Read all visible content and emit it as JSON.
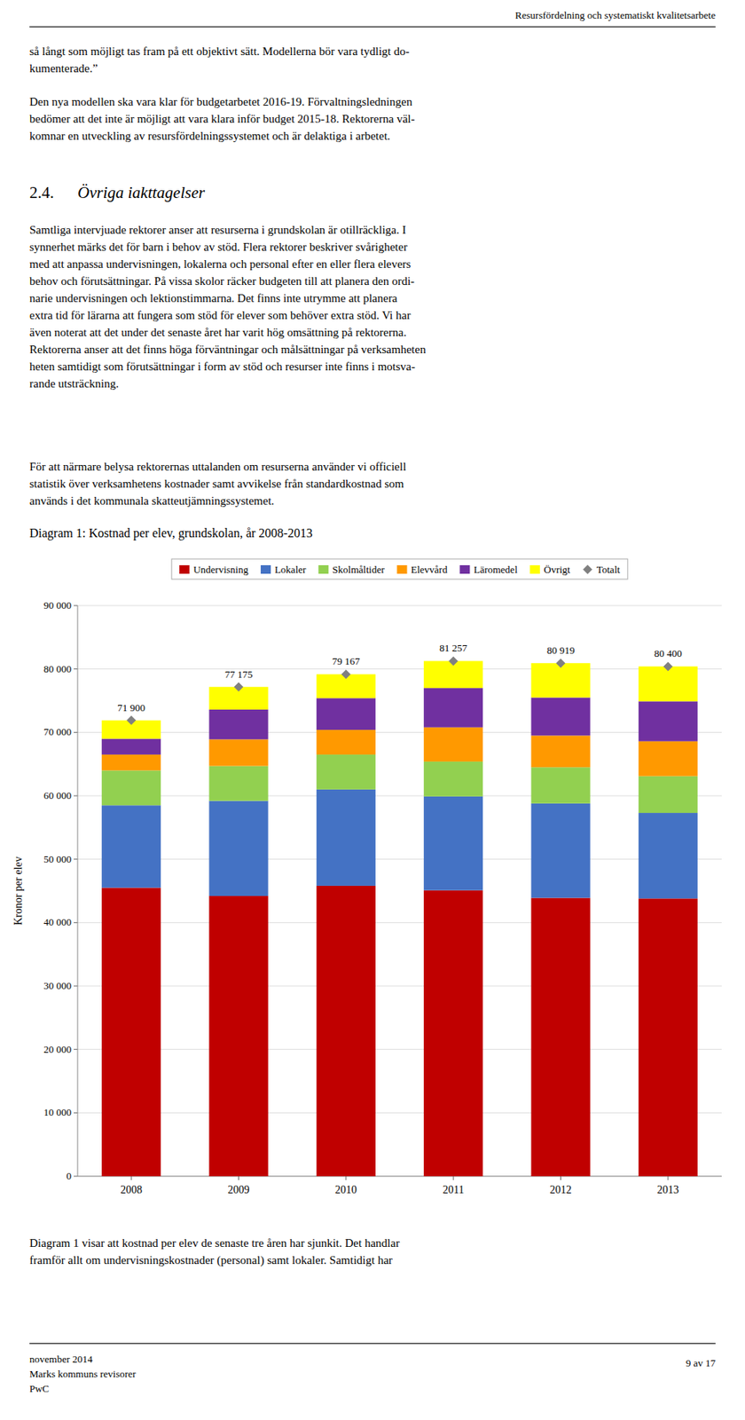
{
  "chart_data": {
    "type": "bar",
    "title": "Diagram 1: Kostnad per elev, grundskolan, år 2008-2013",
    "stacked": true,
    "grid": true,
    "legend": "top",
    "ylabel": "Kronor per elev",
    "categories": [
      "2008",
      "2009",
      "2010",
      "2011",
      "2012",
      "2013"
    ],
    "series": [
      {
        "name": "Undervisning",
        "color": "#C00000",
        "values": [
          45500,
          44200,
          45800,
          45100,
          43900,
          43800
        ]
      },
      {
        "name": "Lokaler",
        "color": "#4472C4",
        "values": [
          13000,
          15000,
          15200,
          14800,
          14900,
          13500
        ]
      },
      {
        "name": "Skolmåltider",
        "color": "#92D050",
        "values": [
          5500,
          5500,
          5500,
          5500,
          5700,
          5800
        ]
      },
      {
        "name": "Elevvård",
        "color": "#FF9900",
        "values": [
          2500,
          4200,
          3900,
          5400,
          5000,
          5500
        ]
      },
      {
        "name": "Läromedel",
        "color": "#7030A0",
        "values": [
          2500,
          4700,
          5000,
          6200,
          6000,
          6300
        ]
      },
      {
        "name": "Övrigt",
        "color": "#FFFF00",
        "values": [
          2900,
          3575,
          3767,
          4257,
          5419,
          5500
        ]
      },
      {
        "name": "Totalt",
        "type": "scatter",
        "marker": "diamond",
        "color": "#808080",
        "data_labels": true,
        "values": [
          71900,
          77175,
          79167,
          81257,
          80919,
          80400
        ],
        "value_labels": [
          "71 900",
          "77 175",
          "79 167",
          "81 257",
          "80 919",
          "80 400"
        ]
      }
    ],
    "ylim": [
      0,
      90000
    ],
    "yticks": [
      0,
      {
        "value": 10000,
        "label": "10 000"
      },
      {
        "value": 20000,
        "label": "20 000"
      },
      {
        "value": 30000,
        "label": "30 000"
      },
      {
        "value": 40000,
        "label": "40 000"
      },
      {
        "value": 50000,
        "label": "50 000"
      },
      {
        "value": 60000,
        "label": "60 000"
      },
      {
        "value": 70000,
        "label": "70 000"
      },
      {
        "value": 80000,
        "label": "80 000"
      },
      {
        "value": 90000,
        "label": "90 000"
      }
    ]
  },
  "page": {
    "header": "Resursfördelning och systematiskt kvalitetsarbete",
    "section": {
      "number": "2.4.",
      "title": "Övriga iakttagelser"
    },
    "paragraphs": [
      [
        "så långt som möjligt tas fram på ett objektivt sätt. Modellerna bör vara tydligt do-",
        "kumenterade.”"
      ],
      [
        "Den nya modellen ska vara klar för budgetarbetet 2016-19. Förvaltningsledningen",
        "bedömer att det inte är möjligt att vara klara inför budget 2015-18. Rektorerna väl-",
        "komnar en utveckling av resursfördelningssystemet och är delaktiga i arbetet."
      ],
      [
        "Samtliga intervjuade rektorer anser att resurserna i grundskolan är otillräckliga. I",
        "synnerhet märks det för barn i behov av stöd. Flera rektorer beskriver svårigheter",
        "med att anpassa undervisningen, lokalerna och personal efter en eller flera elevers",
        "behov och förutsättningar. På vissa skolor räcker budgeten till att planera den ordi-",
        "narie undervisningen och lektionstimmarna. Det finns inte utrymme att planera",
        "extra tid för lärarna att fungera som stöd för elever som behöver extra stöd. Vi har",
        "även noterat att det under det senaste året har varit hög omsättning på rektorerna.",
        "Rektorerna anser att det finns höga förväntningar och målsättningar på verksamheten",
        "heten samtidigt som förutsättningar i form av stöd och resurser inte finns i motsva-",
        "rande utsträckning."
      ],
      [
        "För att närmare belysa rektorernas uttalanden om resurserna använder vi officiell",
        "statistik över verksamhetens kostnader samt avvikelse från standardkostnad som",
        "används i det kommunala skatteutjämningssystemet."
      ],
      [
        "Diagram 1 visar att kostnad per elev de senaste tre åren har sjunkit. Det handlar",
        "framför allt om undervisningskostnader (personal) samt lokaler. Samtidigt har"
      ]
    ],
    "footer_left": [
      "november 2014",
      "Marks kommuns revisorer",
      "PwC"
    ],
    "footer_right": "9 av 17"
  }
}
